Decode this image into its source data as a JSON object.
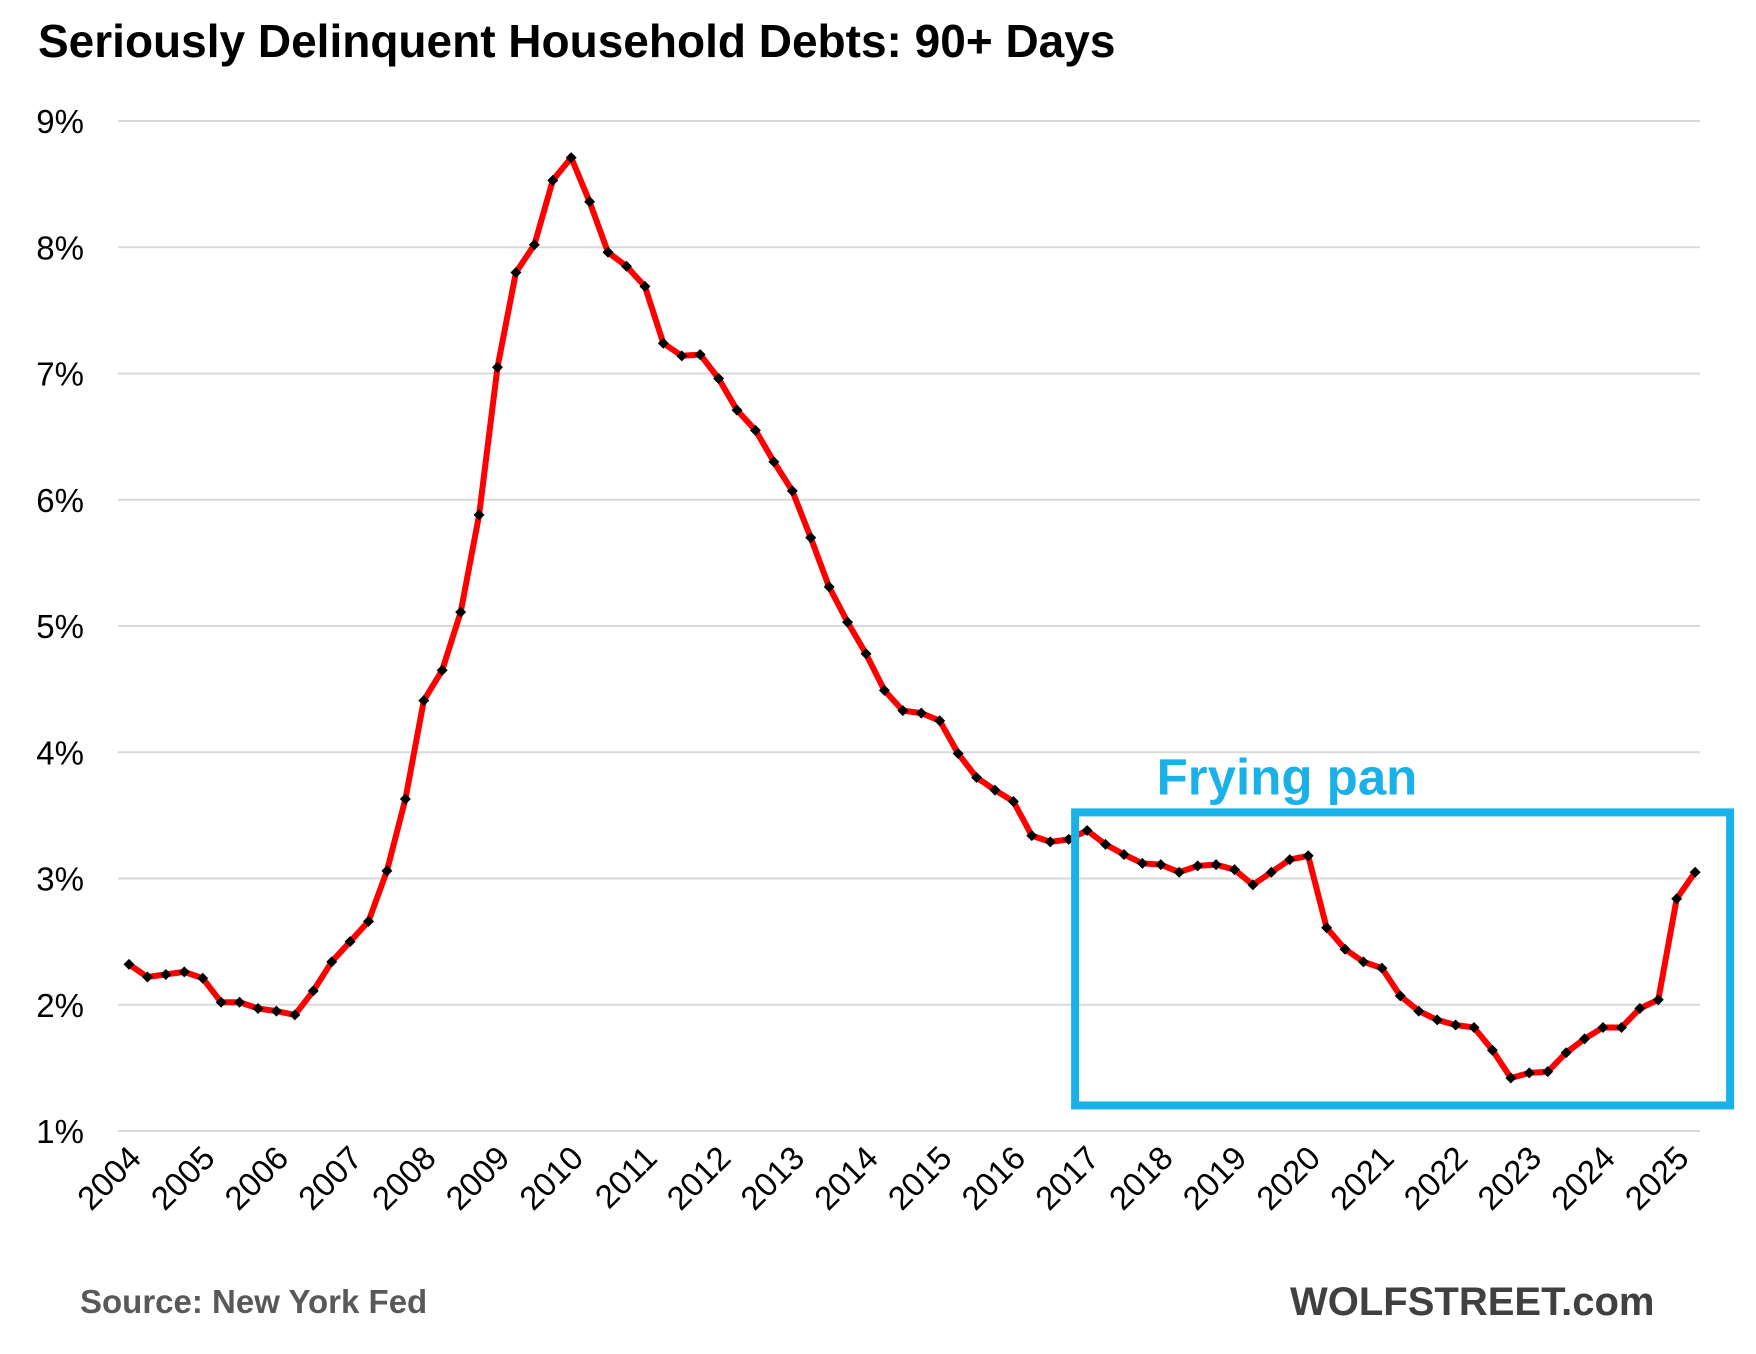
{
  "chart_data": {
    "type": "line",
    "title": "Seriously Delinquent Household Debts: 90+ Days",
    "source": "Source: New York Fed",
    "brand": "WOLFSTREET.com",
    "ylim": [
      1,
      9
    ],
    "y_ticks": [
      1,
      2,
      3,
      4,
      5,
      6,
      7,
      8,
      9
    ],
    "y_tick_labels": [
      "1%",
      "2%",
      "3%",
      "4%",
      "5%",
      "6%",
      "7%",
      "8%",
      "9%"
    ],
    "x_tick_labels": [
      "2004",
      "2005",
      "2006",
      "2007",
      "2008",
      "2009",
      "2010",
      "2011",
      "2012",
      "2013",
      "2014",
      "2015",
      "2016",
      "2017",
      "2018",
      "2019",
      "2020",
      "2021",
      "2022",
      "2023",
      "2024",
      "2025"
    ],
    "x_tick_label_rotation": -45,
    "grid": "horizontal",
    "line_color": "#ff0000",
    "marker_color": "#000000",
    "annotation": {
      "label": "Frying pan",
      "color": "#1ab0e8",
      "start": "2017Q1",
      "end": "2025Q2",
      "ymin": 1.25,
      "ymax": 3.5
    },
    "series": [
      {
        "x": [
          "2004Q1",
          "2004Q2",
          "2004Q3",
          "2004Q4",
          "2005Q1",
          "2005Q2",
          "2005Q3",
          "2005Q4",
          "2006Q1",
          "2006Q2",
          "2006Q3",
          "2006Q4",
          "2007Q1",
          "2007Q2",
          "2007Q3",
          "2007Q4",
          "2008Q1",
          "2008Q2",
          "2008Q3",
          "2008Q4",
          "2009Q1",
          "2009Q2",
          "2009Q3",
          "2009Q4",
          "2010Q1",
          "2010Q2",
          "2010Q3",
          "2010Q4",
          "2011Q1",
          "2011Q2",
          "2011Q3",
          "2011Q4",
          "2012Q1",
          "2012Q2",
          "2012Q3",
          "2012Q4",
          "2013Q1",
          "2013Q2",
          "2013Q3",
          "2013Q4",
          "2014Q1",
          "2014Q2",
          "2014Q3",
          "2014Q4",
          "2015Q1",
          "2015Q2",
          "2015Q3",
          "2015Q4",
          "2016Q1",
          "2016Q2",
          "2016Q3",
          "2016Q4",
          "2017Q1",
          "2017Q2",
          "2017Q3",
          "2017Q4",
          "2018Q1",
          "2018Q2",
          "2018Q3",
          "2018Q4",
          "2019Q1",
          "2019Q2",
          "2019Q3",
          "2019Q4",
          "2020Q1",
          "2020Q2",
          "2020Q3",
          "2020Q4",
          "2021Q1",
          "2021Q2",
          "2021Q3",
          "2021Q4",
          "2022Q1",
          "2022Q2",
          "2022Q3",
          "2022Q4",
          "2023Q1",
          "2023Q2",
          "2023Q3",
          "2023Q4",
          "2024Q1",
          "2024Q2",
          "2024Q3",
          "2024Q4",
          "2025Q1",
          "2025Q2"
        ],
        "values": [
          2.32,
          2.22,
          2.24,
          2.26,
          2.21,
          2.02,
          2.02,
          1.97,
          1.95,
          1.92,
          2.11,
          2.34,
          2.5,
          2.66,
          3.06,
          3.63,
          4.41,
          4.65,
          5.11,
          5.88,
          7.05,
          7.8,
          8.02,
          8.53,
          8.71,
          8.36,
          7.96,
          7.85,
          7.69,
          7.24,
          7.14,
          7.15,
          6.96,
          6.71,
          6.55,
          6.3,
          6.07,
          5.7,
          5.31,
          5.03,
          4.78,
          4.49,
          4.33,
          4.31,
          4.25,
          3.99,
          3.8,
          3.7,
          3.61,
          3.34,
          3.29,
          3.31,
          3.38,
          3.27,
          3.19,
          3.12,
          3.11,
          3.05,
          3.1,
          3.11,
          3.07,
          2.95,
          3.05,
          3.15,
          3.18,
          2.61,
          2.44,
          2.34,
          2.29,
          2.07,
          1.95,
          1.88,
          1.84,
          1.82,
          1.64,
          1.42,
          1.46,
          1.47,
          1.62,
          1.73,
          1.82,
          1.82,
          1.97,
          2.04,
          2.84,
          3.05
        ]
      }
    ]
  }
}
